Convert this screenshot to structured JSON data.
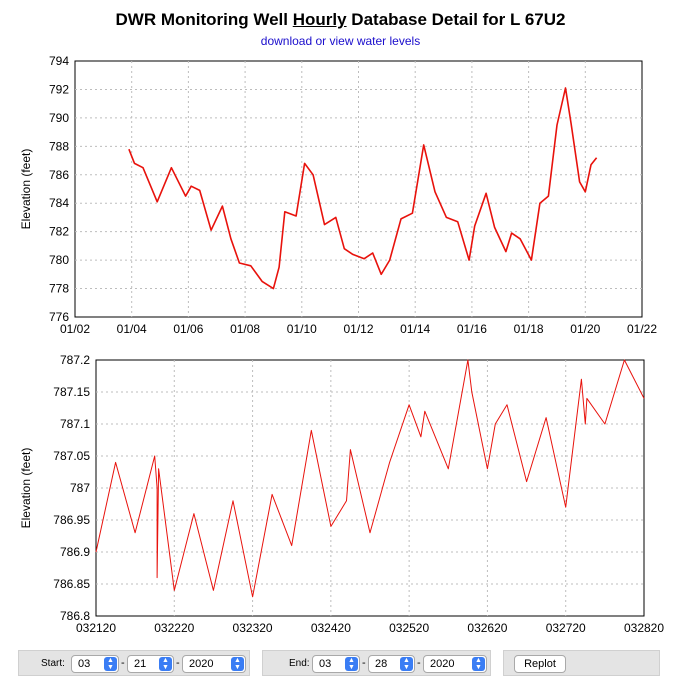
{
  "header": {
    "title_pre": "DWR Monitoring Well ",
    "title_ul": "Hourly",
    "title_post": " Database Detail for L 67U2",
    "link": "download or view water levels"
  },
  "colors": {
    "series": "#e8120c",
    "grid": "#bdbdbd",
    "link": "#1a0dcc"
  },
  "controls": {
    "start_label": "Start:",
    "start_month": "03",
    "start_day": "21",
    "start_year": "2020",
    "end_label": "End:",
    "end_month": "03",
    "end_day": "28",
    "end_year": "2020",
    "separator": "-",
    "replot_label": "Replot"
  },
  "chart_data": [
    {
      "type": "line",
      "title": "",
      "xlabel": "",
      "ylabel": "Elevation (feet)",
      "xlim": [
        2002,
        2022
      ],
      "ylim": [
        776,
        794
      ],
      "xticks": [
        2002,
        2004,
        2006,
        2008,
        2010,
        2012,
        2014,
        2016,
        2018,
        2020,
        2022
      ],
      "xtick_labels": [
        "01/02",
        "01/04",
        "01/06",
        "01/08",
        "01/10",
        "01/12",
        "01/14",
        "01/16",
        "01/18",
        "01/20",
        "01/22"
      ],
      "yticks": [
        776,
        778,
        780,
        782,
        784,
        786,
        788,
        790,
        792,
        794
      ],
      "ytick_labels": [
        "776",
        "778",
        "780",
        "782",
        "784",
        "786",
        "788",
        "790",
        "792",
        "794"
      ],
      "grid": true,
      "series": [
        {
          "name": "Elevation",
          "x": [
            2003.9,
            2004.1,
            2004.4,
            2004.9,
            2005.4,
            2005.9,
            2006.1,
            2006.4,
            2006.8,
            2007.2,
            2007.5,
            2007.8,
            2008.2,
            2008.6,
            2009.0,
            2009.2,
            2009.4,
            2009.8,
            2010.1,
            2010.4,
            2010.8,
            2011.2,
            2011.5,
            2011.8,
            2012.2,
            2012.5,
            2012.8,
            2013.1,
            2013.5,
            2013.9,
            2014.3,
            2014.7,
            2015.1,
            2015.5,
            2015.9,
            2016.1,
            2016.5,
            2016.8,
            2017.2,
            2017.4,
            2017.7,
            2018.1,
            2018.4,
            2018.7,
            2019.0,
            2019.3,
            2019.5,
            2019.8,
            2020.0,
            2020.2,
            2020.4
          ],
          "y": [
            787.8,
            786.8,
            786.5,
            784.1,
            786.5,
            784.5,
            785.2,
            784.9,
            782.1,
            783.8,
            781.5,
            779.8,
            779.6,
            778.5,
            778.0,
            779.5,
            783.4,
            783.1,
            786.8,
            786.0,
            782.5,
            783.0,
            780.8,
            780.4,
            780.1,
            780.5,
            779.0,
            780.0,
            782.9,
            783.3,
            788.1,
            784.8,
            783.0,
            782.7,
            780.0,
            782.4,
            784.7,
            782.3,
            780.6,
            781.9,
            781.5,
            780.0,
            784.0,
            784.5,
            789.5,
            792.1,
            789.6,
            785.5,
            784.8,
            786.7,
            787.2
          ]
        }
      ]
    },
    {
      "type": "line",
      "title": "",
      "xlabel": "",
      "ylabel": "Elevation (feet)",
      "xlim": [
        0,
        7
      ],
      "ylim": [
        786.8,
        787.2
      ],
      "xticks": [
        0,
        1,
        2,
        3,
        4,
        5,
        6,
        7
      ],
      "xtick_labels": [
        "032120",
        "032220",
        "032320",
        "032420",
        "032520",
        "032620",
        "032720",
        "032820"
      ],
      "yticks": [
        786.8,
        786.85,
        786.9,
        786.95,
        787.0,
        787.05,
        787.1,
        787.15,
        787.2
      ],
      "ytick_labels": [
        "786.8",
        "786.85",
        "786.9",
        "786.95",
        "787",
        "787.05",
        "787.1",
        "787.15",
        "787.2"
      ],
      "grid": true,
      "series": [
        {
          "name": "Elevation",
          "x": [
            0.0,
            0.25,
            0.5,
            0.75,
            0.78,
            0.78,
            0.8,
            1.0,
            1.25,
            1.5,
            1.75,
            2.0,
            2.25,
            2.5,
            2.75,
            3.0,
            3.2,
            3.25,
            3.5,
            3.75,
            4.0,
            4.15,
            4.2,
            4.5,
            4.75,
            4.8,
            5.0,
            5.1,
            5.25,
            5.5,
            5.75,
            6.0,
            6.2,
            6.25,
            6.27,
            6.5,
            6.75,
            7.0
          ],
          "y": [
            786.9,
            787.04,
            786.93,
            787.05,
            787.0,
            786.86,
            787.03,
            786.84,
            786.96,
            786.84,
            786.98,
            786.83,
            786.99,
            786.91,
            787.09,
            786.94,
            786.98,
            787.06,
            786.93,
            787.04,
            787.13,
            787.08,
            787.12,
            787.03,
            787.2,
            787.15,
            787.03,
            787.1,
            787.13,
            787.01,
            787.11,
            786.97,
            787.17,
            787.1,
            787.14,
            787.1,
            787.2,
            787.14
          ]
        }
      ]
    }
  ]
}
